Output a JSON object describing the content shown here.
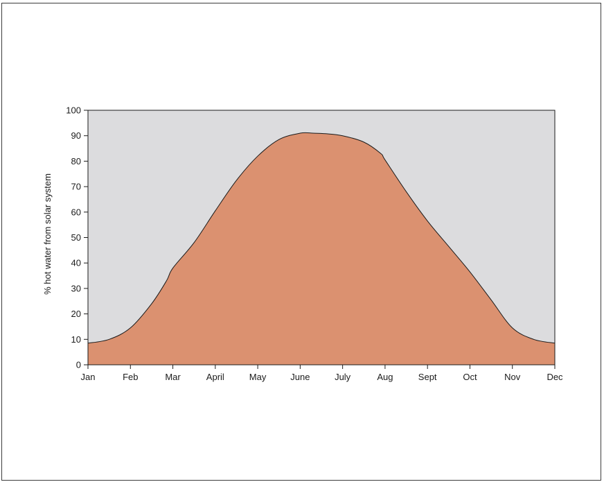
{
  "chart_data": {
    "type": "area",
    "title": "",
    "xlabel": "",
    "ylabel": "% hot water from solar system",
    "categories": [
      "Jan",
      "Feb",
      "Mar",
      "April",
      "May",
      "June",
      "July",
      "Aug",
      "Sept",
      "Oct",
      "Nov",
      "Dec"
    ],
    "ylim": [
      0,
      100
    ],
    "yticks": [
      0,
      10,
      20,
      30,
      40,
      50,
      60,
      70,
      80,
      90,
      100
    ],
    "grid": false,
    "legend": "none",
    "series": [
      {
        "x": [
          0,
          0.5,
          1,
          1.5,
          1.85,
          2,
          2.5,
          3,
          3.5,
          4,
          4.5,
          5,
          5.3,
          5.6,
          6,
          6.5,
          6.9,
          7,
          7.5,
          8,
          8.5,
          9,
          9.5,
          10,
          10.5,
          11
        ],
        "values": [
          8.5,
          10,
          14.5,
          24,
          33,
          38,
          48,
          60.5,
          72.5,
          82,
          88.5,
          91,
          91,
          90.8,
          90,
          87.5,
          83,
          80.5,
          68,
          56.5,
          46.5,
          36.5,
          25.5,
          14.5,
          10,
          8.5
        ]
      }
    ],
    "colors": {
      "area_fill": "#db9170",
      "background": "#dcdcde",
      "line": "#1a1a1a"
    }
  }
}
